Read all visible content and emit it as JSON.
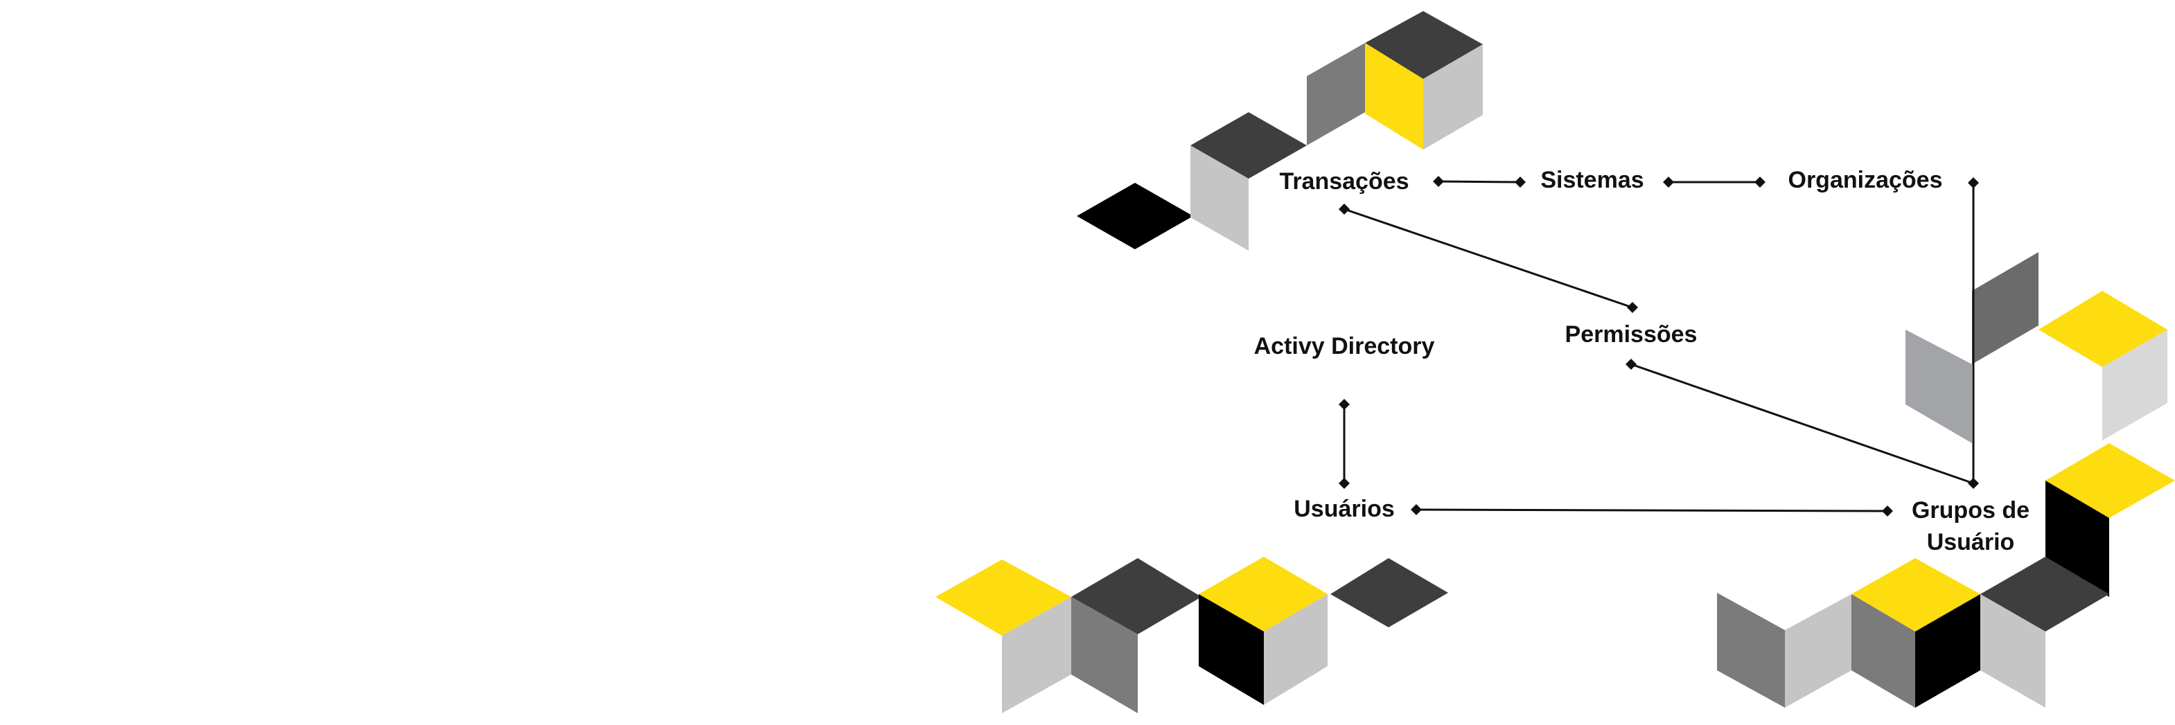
{
  "diagram": {
    "nodes": {
      "transacoes": "Transações",
      "sistemas": "Sistemas",
      "organizacoes": "Organizações",
      "permissoes": "Permissões",
      "active_directory": "Activy Directory",
      "usuarios": "Usuários",
      "grupos_line1": "Grupos de",
      "grupos_line2": "Usuário"
    },
    "edges": [
      {
        "from": "Transações",
        "to": "Sistemas"
      },
      {
        "from": "Sistemas",
        "to": "Organizações"
      },
      {
        "from": "Transações",
        "to": "Permissões"
      },
      {
        "from": "Permissões",
        "to": "Grupos de Usuário"
      },
      {
        "from": "Organizações",
        "to": "Grupos de Usuário"
      },
      {
        "from": "Activy Directory",
        "to": "Usuários"
      },
      {
        "from": "Usuários",
        "to": "Grupos de Usuário"
      }
    ]
  },
  "colors": {
    "yellow": "#FDDC10",
    "black": "#000000",
    "dark_gray": "#3E3E3E",
    "mid_gray": "#7B7B7B",
    "light_gray": "#C5C5C5",
    "connector": "#111111"
  }
}
